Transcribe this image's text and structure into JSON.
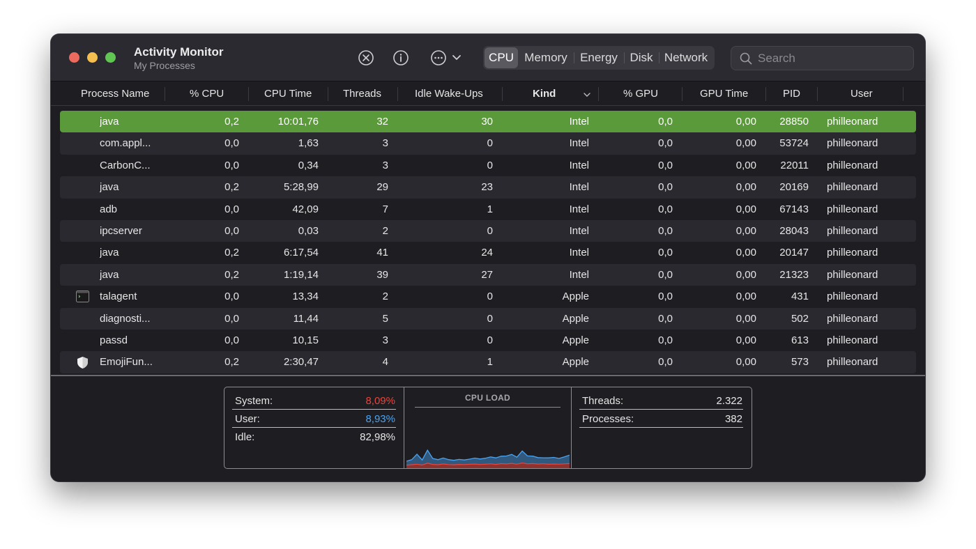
{
  "window": {
    "title": "Activity Monitor",
    "subtitle": "My Processes"
  },
  "toolbar": {
    "stop_icon": "stop-process-icon",
    "info_icon": "info-icon",
    "more_icon": "more-options-icon"
  },
  "tabs": [
    {
      "label": "CPU",
      "active": true
    },
    {
      "label": "Memory",
      "active": false
    },
    {
      "label": "Energy",
      "active": false
    },
    {
      "label": "Disk",
      "active": false
    },
    {
      "label": "Network",
      "active": false
    }
  ],
  "search": {
    "placeholder": "Search",
    "value": ""
  },
  "columns": [
    "Process Name",
    "% CPU",
    "CPU Time",
    "Threads",
    "Idle Wake-Ups",
    "Kind",
    "% GPU",
    "GPU Time",
    "PID",
    "User"
  ],
  "sort_column": "Kind",
  "processes": [
    {
      "name": "java",
      "cpu": "0,2",
      "cpu_time": "10:01,76",
      "threads": "32",
      "idle": "30",
      "kind": "Intel",
      "gpu": "0,0",
      "gpu_time": "0,00",
      "pid": "28850",
      "user": "philleonard",
      "icon": "",
      "selected": true
    },
    {
      "name": "com.appl...",
      "cpu": "0,0",
      "cpu_time": "1,63",
      "threads": "3",
      "idle": "0",
      "kind": "Intel",
      "gpu": "0,0",
      "gpu_time": "0,00",
      "pid": "53724",
      "user": "philleonard",
      "icon": ""
    },
    {
      "name": "CarbonC...",
      "cpu": "0,0",
      "cpu_time": "0,34",
      "threads": "3",
      "idle": "0",
      "kind": "Intel",
      "gpu": "0,0",
      "gpu_time": "0,00",
      "pid": "22011",
      "user": "philleonard",
      "icon": ""
    },
    {
      "name": "java",
      "cpu": "0,2",
      "cpu_time": "5:28,99",
      "threads": "29",
      "idle": "23",
      "kind": "Intel",
      "gpu": "0,0",
      "gpu_time": "0,00",
      "pid": "20169",
      "user": "philleonard",
      "icon": ""
    },
    {
      "name": "adb",
      "cpu": "0,0",
      "cpu_time": "42,09",
      "threads": "7",
      "idle": "1",
      "kind": "Intel",
      "gpu": "0,0",
      "gpu_time": "0,00",
      "pid": "67143",
      "user": "philleonard",
      "icon": ""
    },
    {
      "name": "ipcserver",
      "cpu": "0,0",
      "cpu_time": "0,03",
      "threads": "2",
      "idle": "0",
      "kind": "Intel",
      "gpu": "0,0",
      "gpu_time": "0,00",
      "pid": "28043",
      "user": "philleonard",
      "icon": ""
    },
    {
      "name": "java",
      "cpu": "0,2",
      "cpu_time": "6:17,54",
      "threads": "41",
      "idle": "24",
      "kind": "Intel",
      "gpu": "0,0",
      "gpu_time": "0,00",
      "pid": "20147",
      "user": "philleonard",
      "icon": ""
    },
    {
      "name": "java",
      "cpu": "0,2",
      "cpu_time": "1:19,14",
      "threads": "39",
      "idle": "27",
      "kind": "Intel",
      "gpu": "0,0",
      "gpu_time": "0,00",
      "pid": "21323",
      "user": "philleonard",
      "icon": ""
    },
    {
      "name": "talagent",
      "cpu": "0,0",
      "cpu_time": "13,34",
      "threads": "2",
      "idle": "0",
      "kind": "Apple",
      "gpu": "0,0",
      "gpu_time": "0,00",
      "pid": "431",
      "user": "philleonard",
      "icon": "terminal-icon"
    },
    {
      "name": "diagnosti...",
      "cpu": "0,0",
      "cpu_time": "11,44",
      "threads": "5",
      "idle": "0",
      "kind": "Apple",
      "gpu": "0,0",
      "gpu_time": "0,00",
      "pid": "502",
      "user": "philleonard",
      "icon": ""
    },
    {
      "name": "passd",
      "cpu": "0,0",
      "cpu_time": "10,15",
      "threads": "3",
      "idle": "0",
      "kind": "Apple",
      "gpu": "0,0",
      "gpu_time": "0,00",
      "pid": "613",
      "user": "philleonard",
      "icon": ""
    },
    {
      "name": "EmojiFun...",
      "cpu": "0,2",
      "cpu_time": "2:30,47",
      "threads": "4",
      "idle": "1",
      "kind": "Apple",
      "gpu": "0,0",
      "gpu_time": "0,00",
      "pid": "573",
      "user": "philleonard",
      "icon": "shield-icon"
    }
  ],
  "summary": {
    "system_label": "System:",
    "system_value": "8,09%",
    "user_label": "User:",
    "user_value": "8,93%",
    "idle_label": "Idle:",
    "idle_value": "82,98%",
    "chart_title": "CPU LOAD",
    "threads_label": "Threads:",
    "threads_value": "2.322",
    "processes_label": "Processes:",
    "processes_value": "382",
    "colors": {
      "system": "#e8453c",
      "user": "#4aa3f0"
    }
  },
  "chart_data": {
    "type": "area",
    "title": "CPU LOAD",
    "series": [
      {
        "name": "System",
        "color": "#e8453c",
        "values": [
          3,
          3.5,
          4,
          3.2,
          5,
          3.8,
          3.5,
          4.2,
          3.6,
          3.4,
          3.8,
          3.6,
          3.9,
          4.1,
          3.7,
          4,
          4.3,
          3.8,
          4.5,
          4.2,
          4.8,
          4,
          5.2,
          4.3,
          4.6,
          4.1,
          4.4,
          3.9,
          4.2,
          4,
          4.3,
          4.6
        ]
      },
      {
        "name": "User",
        "color": "#4aa3f0",
        "values": [
          4,
          5,
          10,
          5,
          13,
          6,
          5,
          6,
          5,
          4.5,
          5,
          4.6,
          5.2,
          6,
          5.5,
          6,
          7,
          6.5,
          7.5,
          8,
          9,
          7,
          12,
          8,
          7.5,
          6.5,
          6,
          6.4,
          6.6,
          5.8,
          7,
          8.5
        ]
      }
    ]
  }
}
